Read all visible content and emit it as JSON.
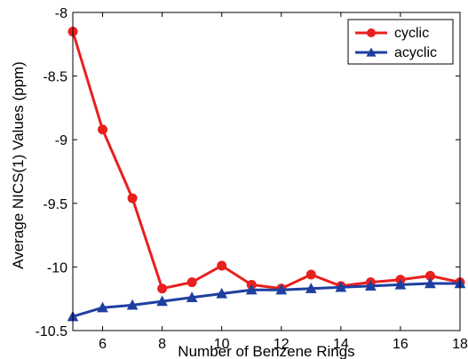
{
  "chart_data": {
    "type": "line",
    "title": "",
    "xlabel": "Number of Benzene Rings",
    "ylabel": "Average NICS(1) Values (ppm)",
    "xlim": [
      5,
      18
    ],
    "ylim": [
      -10.5,
      -8
    ],
    "x_ticks": [
      6,
      8,
      10,
      12,
      14,
      16,
      18
    ],
    "y_ticks": [
      -10.5,
      -10,
      -9.5,
      -9,
      -8.5,
      -8
    ],
    "x_tick_labels": [
      "6",
      "8",
      "10",
      "12",
      "14",
      "16",
      "18"
    ],
    "y_tick_labels": [
      "-10.5",
      "-10",
      "-9.5",
      "-9",
      "-8.5",
      "-8"
    ],
    "grid": false,
    "legend_position": "top-right",
    "x": [
      5,
      6,
      7,
      8,
      9,
      10,
      11,
      12,
      13,
      14,
      15,
      16,
      17,
      18
    ],
    "series": [
      {
        "name": "cyclic",
        "color": "#e8201e",
        "marker": "circle",
        "values": [
          -8.15,
          -8.92,
          -9.46,
          -10.17,
          -10.12,
          -9.99,
          -10.14,
          -10.17,
          -10.06,
          -10.15,
          -10.12,
          -10.1,
          -10.07,
          -10.12
        ]
      },
      {
        "name": "acyclic",
        "color": "#1f3fa0",
        "marker": "triangle",
        "values": [
          -10.39,
          -10.32,
          -10.3,
          -10.27,
          -10.24,
          -10.21,
          -10.18,
          -10.18,
          -10.17,
          -10.16,
          -10.15,
          -10.14,
          -10.13,
          -10.13
        ]
      }
    ]
  }
}
